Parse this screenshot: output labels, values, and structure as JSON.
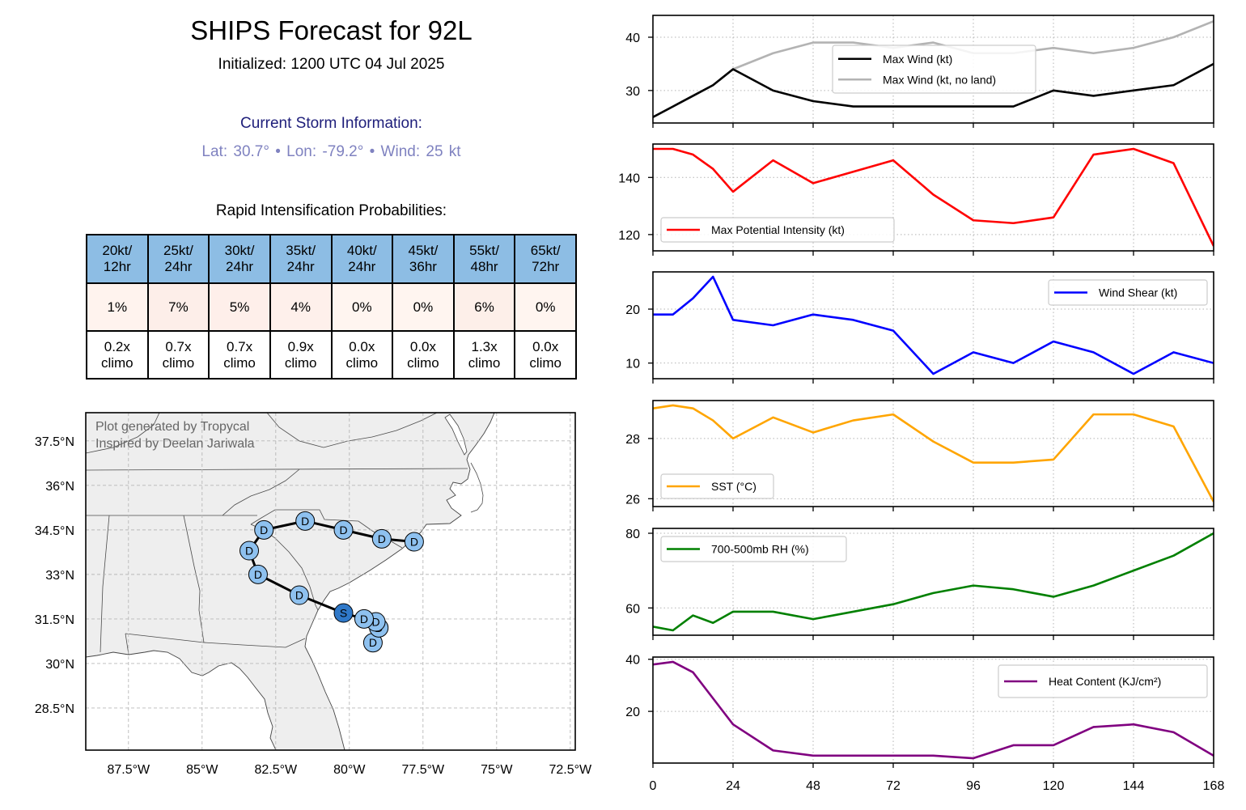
{
  "header": {
    "title": "SHIPS Forecast for 92L",
    "initialized": "Initialized: 1200 UTC 04 Jul 2025"
  },
  "storm_info": {
    "heading": "Current Storm Information:",
    "details": "Lat: 30.7° • Lon: -79.2° • Wind: 25 kt",
    "heading_color": "#1e1e7a",
    "details_color": "#7f82c0"
  },
  "ri_table": {
    "title": "Rapid Intensification Probabilities:",
    "header_color": "#8dbde4",
    "columns": [
      {
        "threshold": "20kt/",
        "period": "12hr",
        "probability": "1%",
        "cell_color": "#fff3ee",
        "climo_ratio": "0.2x",
        "climo_label": "climo"
      },
      {
        "threshold": "25kt/",
        "period": "24hr",
        "probability": "7%",
        "cell_color": "#fdeee9",
        "climo_ratio": "0.7x",
        "climo_label": "climo"
      },
      {
        "threshold": "30kt/",
        "period": "24hr",
        "probability": "5%",
        "cell_color": "#feefea",
        "climo_ratio": "0.7x",
        "climo_label": "climo"
      },
      {
        "threshold": "35kt/",
        "period": "24hr",
        "probability": "4%",
        "cell_color": "#fef0eb",
        "climo_ratio": "0.9x",
        "climo_label": "climo"
      },
      {
        "threshold": "40kt/",
        "period": "24hr",
        "probability": "0%",
        "cell_color": "#fff5f0",
        "climo_ratio": "0.0x",
        "climo_label": "climo"
      },
      {
        "threshold": "45kt/",
        "period": "36hr",
        "probability": "0%",
        "cell_color": "#fff5f0",
        "climo_ratio": "0.0x",
        "climo_label": "climo"
      },
      {
        "threshold": "55kt/",
        "period": "48hr",
        "probability": "6%",
        "cell_color": "#fdefe9",
        "climo_ratio": "1.3x",
        "climo_label": "climo"
      },
      {
        "threshold": "65kt/",
        "period": "72hr",
        "probability": "0%",
        "cell_color": "#fff5f0",
        "climo_ratio": "0.0x",
        "climo_label": "climo"
      }
    ]
  },
  "map": {
    "credit_lines": [
      "Plot generated by Tropycal",
      "Inspired by Deelan Jariwala"
    ],
    "extent": {
      "lon_min": -88.95,
      "lon_max": -72.33,
      "lat_min": 27.08,
      "lat_max": 38.45
    },
    "lat_ticks": [
      {
        "value": 37.5,
        "label": "37.5°N"
      },
      {
        "value": 36.0,
        "label": "36°N"
      },
      {
        "value": 34.5,
        "label": "34.5°N"
      },
      {
        "value": 33.0,
        "label": "33°N"
      },
      {
        "value": 31.5,
        "label": "31.5°N"
      },
      {
        "value": 30.0,
        "label": "30°N"
      },
      {
        "value": 28.5,
        "label": "28.5°N"
      }
    ],
    "lon_ticks": [
      {
        "value": -87.5,
        "label": "87.5°W"
      },
      {
        "value": -85.0,
        "label": "85°W"
      },
      {
        "value": -82.5,
        "label": "82.5°W"
      },
      {
        "value": -80.0,
        "label": "80°W"
      },
      {
        "value": -77.5,
        "label": "77.5°W"
      },
      {
        "value": -75.0,
        "label": "75°W"
      },
      {
        "value": -72.5,
        "label": "72.5°W"
      }
    ],
    "colors": {
      "land": "#eeeeee",
      "ocean": "#ffffff",
      "track_line": "#000000",
      "depression_marker": "#8ec1ef",
      "storm_marker": "#2f78c8"
    },
    "track": [
      {
        "hour": 0,
        "lat": 30.7,
        "lon": -79.2,
        "type": "D"
      },
      {
        "hour": 6,
        "lat": 31.2,
        "lon": -79.0,
        "type": "D"
      },
      {
        "hour": 12,
        "lat": 31.4,
        "lon": -79.1,
        "type": "D"
      },
      {
        "hour": 18,
        "lat": 31.5,
        "lon": -79.5,
        "type": "D"
      },
      {
        "hour": 24,
        "lat": 31.7,
        "lon": -80.2,
        "type": "S"
      },
      {
        "hour": 36,
        "lat": 32.3,
        "lon": -81.7,
        "type": "D"
      },
      {
        "hour": 48,
        "lat": 33.0,
        "lon": -83.1,
        "type": "D"
      },
      {
        "hour": 60,
        "lat": 33.8,
        "lon": -83.4,
        "type": "D"
      },
      {
        "hour": 72,
        "lat": 34.5,
        "lon": -82.9,
        "type": "D"
      },
      {
        "hour": 84,
        "lat": 34.8,
        "lon": -81.5,
        "type": "D"
      },
      {
        "hour": 96,
        "lat": 34.5,
        "lon": -80.2,
        "type": "D"
      },
      {
        "hour": 108,
        "lat": 34.2,
        "lon": -78.9,
        "type": "D"
      },
      {
        "hour": 120,
        "lat": 34.1,
        "lon": -77.8,
        "type": "D"
      }
    ]
  },
  "chart_data": [
    {
      "id": "max-wind",
      "type": "line",
      "title": "",
      "xlabel": "",
      "ylabel": "",
      "x": [
        0,
        6,
        12,
        18,
        24,
        36,
        48,
        60,
        72,
        84,
        96,
        108,
        120,
        132,
        144,
        156,
        168
      ],
      "xlim": [
        0,
        168
      ],
      "xticks": [
        0,
        24,
        48,
        72,
        96,
        120,
        144,
        168
      ],
      "xticklabels": [],
      "ylim": [
        23.9,
        44.1
      ],
      "yticks": [
        30,
        40
      ],
      "yticklabels": [
        "30",
        "40"
      ],
      "grid": true,
      "legend": "upper center",
      "series": [
        {
          "key": "max-wind-no-land",
          "name": "Max Wind (kt, no land)",
          "color": "#b3b3b3",
          "values": [
            25,
            27,
            29,
            31,
            34,
            37,
            39,
            39,
            38,
            39,
            37,
            37,
            38,
            37,
            38,
            40,
            43
          ]
        },
        {
          "key": "max-wind",
          "name": "Max Wind (kt)",
          "color": "#000000",
          "values": [
            25,
            27,
            29,
            31,
            34,
            30,
            28,
            27,
            27,
            27,
            27,
            27,
            30,
            29,
            30,
            31,
            35
          ]
        }
      ],
      "legend_order": [
        "max-wind",
        "max-wind-no-land"
      ]
    },
    {
      "id": "mpi",
      "type": "line",
      "title": "",
      "xlabel": "",
      "ylabel": "",
      "x": [
        0,
        6,
        12,
        18,
        24,
        36,
        48,
        60,
        72,
        84,
        96,
        108,
        120,
        132,
        144,
        156,
        168
      ],
      "xlim": [
        0,
        168
      ],
      "xticks": [
        0,
        24,
        48,
        72,
        96,
        120,
        144,
        168
      ],
      "xticklabels": [],
      "ylim": [
        114.3,
        151.7
      ],
      "yticks": [
        120,
        140
      ],
      "yticklabels": [
        "120",
        "140"
      ],
      "grid": true,
      "legend": "lower left",
      "series": [
        {
          "key": "mpi",
          "name": "Max Potential Intensity (kt)",
          "color": "#ff0000",
          "values": [
            150,
            150,
            148,
            143,
            135,
            146,
            138,
            142,
            146,
            134,
            125,
            124,
            126,
            148,
            150,
            145,
            116
          ]
        }
      ],
      "legend_order": [
        "mpi"
      ]
    },
    {
      "id": "shear",
      "type": "line",
      "title": "",
      "xlabel": "",
      "ylabel": "",
      "x": [
        0,
        6,
        12,
        18,
        24,
        36,
        48,
        60,
        72,
        84,
        96,
        108,
        120,
        132,
        144,
        156,
        168
      ],
      "xlim": [
        0,
        168
      ],
      "xticks": [
        0,
        24,
        48,
        72,
        96,
        120,
        144,
        168
      ],
      "xticklabels": [],
      "ylim": [
        7.1,
        26.9
      ],
      "yticks": [
        10,
        20
      ],
      "yticklabels": [
        "10",
        "20"
      ],
      "grid": true,
      "legend": "upper right",
      "series": [
        {
          "key": "shear",
          "name": "Wind Shear (kt)",
          "color": "#0000ff",
          "values": [
            19,
            19,
            22,
            26,
            18,
            17,
            19,
            18,
            16,
            8,
            12,
            10,
            14,
            12,
            8,
            12,
            10
          ]
        }
      ],
      "legend_order": [
        "shear"
      ]
    },
    {
      "id": "sst",
      "type": "line",
      "title": "",
      "xlabel": "",
      "ylabel": "",
      "x": [
        0,
        6,
        12,
        18,
        24,
        36,
        48,
        60,
        72,
        84,
        96,
        108,
        120,
        132,
        144,
        156,
        168
      ],
      "xlim": [
        0,
        168
      ],
      "xticks": [
        0,
        24,
        48,
        72,
        96,
        120,
        144,
        168
      ],
      "xticklabels": [],
      "ylim": [
        25.74,
        29.26
      ],
      "yticks": [
        26,
        28
      ],
      "yticklabels": [
        "26",
        "28"
      ],
      "grid": true,
      "legend": "lower left",
      "series": [
        {
          "key": "sst",
          "name": "SST (°C)",
          "color": "#ffa500",
          "values": [
            29.0,
            29.1,
            29.0,
            28.6,
            28.0,
            28.7,
            28.2,
            28.6,
            28.8,
            27.9,
            27.2,
            27.2,
            27.3,
            28.8,
            28.8,
            28.4,
            25.9
          ]
        }
      ],
      "legend_order": [
        "sst"
      ]
    },
    {
      "id": "rh",
      "type": "line",
      "title": "",
      "xlabel": "",
      "ylabel": "",
      "x": [
        0,
        6,
        12,
        18,
        24,
        36,
        48,
        60,
        72,
        84,
        96,
        108,
        120,
        132,
        144,
        156,
        168
      ],
      "xlim": [
        0,
        168
      ],
      "xticks": [
        0,
        24,
        48,
        72,
        96,
        120,
        144,
        168
      ],
      "xticklabels": [],
      "ylim": [
        52.7,
        81.3
      ],
      "yticks": [
        60,
        80
      ],
      "yticklabels": [
        "60",
        "80"
      ],
      "grid": true,
      "legend": "upper left",
      "series": [
        {
          "key": "rh",
          "name": "700-500mb RH (%)",
          "color": "#008000",
          "values": [
            55,
            54,
            58,
            56,
            59,
            59,
            57,
            59,
            61,
            64,
            66,
            65,
            63,
            66,
            70,
            74,
            80
          ]
        }
      ],
      "legend_order": [
        "rh"
      ]
    },
    {
      "id": "ohc",
      "type": "line",
      "title": "",
      "xlabel": "",
      "ylabel": "",
      "x": [
        0,
        6,
        12,
        18,
        24,
        36,
        48,
        60,
        72,
        84,
        96,
        108,
        120,
        132,
        144,
        156,
        168
      ],
      "xlim": [
        0,
        168
      ],
      "xticks": [
        0,
        24,
        48,
        72,
        96,
        120,
        144,
        168
      ],
      "xticklabels": [
        "0",
        "24",
        "48",
        "72",
        "96",
        "120",
        "144",
        "168"
      ],
      "ylim": [
        0.15,
        40.85
      ],
      "yticks": [
        20,
        40
      ],
      "yticklabels": [
        "20",
        "40"
      ],
      "grid": true,
      "legend": "upper right",
      "series": [
        {
          "key": "ohc",
          "name": "Heat Content (KJ/cm²)",
          "color": "#800080",
          "values": [
            38,
            39,
            35,
            25,
            15,
            5,
            3,
            3,
            3,
            3,
            2,
            7,
            7,
            14,
            15,
            12,
            3
          ]
        }
      ],
      "legend_order": [
        "ohc"
      ]
    }
  ]
}
